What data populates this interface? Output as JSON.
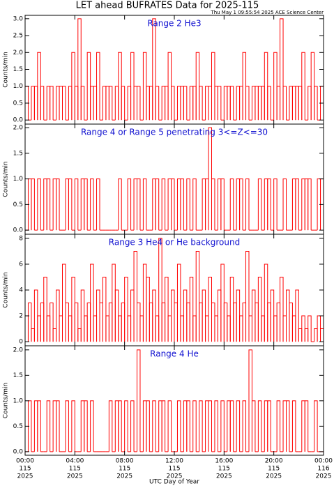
{
  "page": {
    "title": "LET ahead BUFRATES Data for 2025-115",
    "subtitle": "Thu May  1 09:55:54 2025 ACE Science Center"
  },
  "x_axis": {
    "label": "UTC Day of Year",
    "xlim": [
      0,
      24
    ],
    "xticks": [
      {
        "value": 0,
        "label": "00:00"
      },
      {
        "value": 4,
        "label": "04:00"
      },
      {
        "value": 8,
        "label": "08:00"
      },
      {
        "value": 12,
        "label": "12:00"
      },
      {
        "value": 16,
        "label": "16:00"
      },
      {
        "value": 20,
        "label": "20:00"
      },
      {
        "value": 24,
        "label": "00:00"
      }
    ],
    "xtick_days": [
      "115",
      "115",
      "115",
      "115",
      "115",
      "115",
      "116"
    ],
    "xtick_years": [
      "2025",
      "2025",
      "2025",
      "2025",
      "2025",
      "2025",
      "2025"
    ]
  },
  "chart_data": [
    {
      "type": "line",
      "title": "Range 2 He3",
      "ylabel": "Counts/min",
      "color": "#ff0000",
      "ylim": [
        -0.12,
        3.1
      ],
      "yticks": [
        {
          "value": 0,
          "label": "0.0"
        },
        {
          "value": 0.5,
          "label": "0.5"
        },
        {
          "value": 1,
          "label": "1.0"
        },
        {
          "value": 1.5,
          "label": "1.5"
        },
        {
          "value": 2,
          "label": "2.0"
        },
        {
          "value": 2.5,
          "label": "2.5"
        },
        {
          "value": 3,
          "label": "3.0"
        }
      ],
      "x": [
        0,
        0.25,
        0.5,
        0.75,
        1,
        1.25,
        1.5,
        1.75,
        2,
        2.25,
        2.5,
        2.75,
        3,
        3.25,
        3.5,
        3.75,
        4,
        4.25,
        4.5,
        4.75,
        5,
        5.25,
        5.5,
        5.75,
        6,
        6.25,
        6.5,
        6.75,
        7,
        7.25,
        7.5,
        7.75,
        8,
        8.25,
        8.5,
        8.75,
        9,
        9.25,
        9.5,
        9.75,
        10,
        10.25,
        10.5,
        10.75,
        11,
        11.25,
        11.5,
        11.75,
        12,
        12.25,
        12.5,
        12.75,
        13,
        13.25,
        13.5,
        13.75,
        14,
        14.25,
        14.5,
        14.75,
        15,
        15.25,
        15.5,
        15.75,
        16,
        16.25,
        16.5,
        16.75,
        17,
        17.25,
        17.5,
        17.75,
        18,
        18.25,
        18.5,
        18.75,
        19,
        19.25,
        19.5,
        19.75,
        20,
        20.25,
        20.5,
        20.75,
        21,
        21.25,
        21.5,
        21.75,
        22,
        22.25,
        22.5,
        22.75,
        23,
        23.25,
        23.5,
        23.75,
        24
      ],
      "values": [
        1,
        0,
        1,
        1,
        2,
        1,
        0,
        1,
        1,
        0,
        1,
        1,
        1,
        0,
        1,
        2,
        1,
        3,
        1,
        0,
        2,
        1,
        1,
        2,
        0,
        1,
        1,
        1,
        0,
        1,
        2,
        1,
        0,
        1,
        2,
        1,
        1,
        0,
        2,
        1,
        1,
        3,
        1,
        0,
        1,
        1,
        2,
        1,
        0,
        1,
        1,
        1,
        0,
        1,
        1,
        2,
        1,
        0,
        1,
        1,
        2,
        1,
        1,
        0,
        1,
        1,
        1,
        0,
        1,
        1,
        2,
        1,
        0,
        1,
        1,
        1,
        1,
        2,
        1,
        0,
        2,
        1,
        3,
        1,
        0,
        1,
        1,
        1,
        1,
        2,
        0,
        1,
        2,
        1,
        0,
        1,
        1
      ]
    },
    {
      "type": "line",
      "title": "Range 4 or Range 5 penetrating 3<=Z<=30",
      "ylabel": "Counts/min",
      "color": "#ff0000",
      "ylim": [
        -0.08,
        2.07
      ],
      "yticks": [
        {
          "value": 0,
          "label": "0.0"
        },
        {
          "value": 0.5,
          "label": "0.5"
        },
        {
          "value": 1,
          "label": "1.0"
        },
        {
          "value": 1.5,
          "label": "1.5"
        },
        {
          "value": 2,
          "label": "2.0"
        }
      ],
      "x": [
        0,
        0.25,
        0.5,
        0.75,
        1,
        1.25,
        1.5,
        1.75,
        2,
        2.25,
        2.5,
        2.75,
        3,
        3.25,
        3.5,
        3.75,
        4,
        4.25,
        4.5,
        4.75,
        5,
        5.25,
        5.5,
        5.75,
        6,
        6.25,
        6.5,
        6.75,
        7,
        7.25,
        7.5,
        7.75,
        8,
        8.25,
        8.5,
        8.75,
        9,
        9.25,
        9.5,
        9.75,
        10,
        10.25,
        10.5,
        10.75,
        11,
        11.25,
        11.5,
        11.75,
        12,
        12.25,
        12.5,
        12.75,
        13,
        13.25,
        13.5,
        13.75,
        14,
        14.25,
        14.5,
        14.75,
        15,
        15.25,
        15.5,
        15.75,
        16,
        16.25,
        16.5,
        16.75,
        17,
        17.25,
        17.5,
        17.75,
        18,
        18.25,
        18.5,
        18.75,
        19,
        19.25,
        19.5,
        19.75,
        20,
        20.25,
        20.5,
        20.75,
        21,
        21.25,
        21.5,
        21.75,
        22,
        22.25,
        22.5,
        22.75,
        23,
        23.25,
        23.5,
        23.75,
        24
      ],
      "values": [
        0,
        1,
        1,
        0,
        1,
        0,
        1,
        1,
        0,
        1,
        1,
        0,
        0,
        1,
        1,
        0,
        1,
        0,
        1,
        1,
        0,
        1,
        0,
        1,
        0,
        0,
        0,
        0,
        0,
        0,
        1,
        0,
        0,
        1,
        0,
        1,
        1,
        0,
        1,
        0,
        0,
        1,
        1,
        0,
        1,
        0,
        1,
        1,
        0,
        1,
        1,
        0,
        1,
        0,
        1,
        0,
        0,
        1,
        1,
        2,
        1,
        0,
        1,
        1,
        0,
        0,
        1,
        0,
        1,
        1,
        0,
        1,
        0,
        0,
        0,
        1,
        0,
        1,
        1,
        0,
        1,
        0,
        0,
        1,
        0,
        0,
        1,
        1,
        0,
        1,
        1,
        1,
        0,
        0,
        1,
        1,
        0
      ]
    },
    {
      "type": "line",
      "title": "Range 3 He4 or He background",
      "ylabel": "Counts/min",
      "color": "#ff0000",
      "ylim": [
        -0.32,
        8.32
      ],
      "yticks": [
        0,
        2,
        4,
        6,
        8
      ],
      "x": [
        0,
        0.25,
        0.5,
        0.75,
        1,
        1.25,
        1.5,
        1.75,
        2,
        2.25,
        2.5,
        2.75,
        3,
        3.25,
        3.5,
        3.75,
        4,
        4.25,
        4.5,
        4.75,
        5,
        5.25,
        5.5,
        5.75,
        6,
        6.25,
        6.5,
        6.75,
        7,
        7.25,
        7.5,
        7.75,
        8,
        8.25,
        8.5,
        8.75,
        9,
        9.25,
        9.5,
        9.75,
        10,
        10.25,
        10.5,
        10.75,
        11,
        11.25,
        11.5,
        11.75,
        12,
        12.25,
        12.5,
        12.75,
        13,
        13.25,
        13.5,
        13.75,
        14,
        14.25,
        14.5,
        14.75,
        15,
        15.25,
        15.5,
        15.75,
        16,
        16.25,
        16.5,
        16.75,
        17,
        17.25,
        17.5,
        17.75,
        18,
        18.25,
        18.5,
        18.75,
        19,
        19.25,
        19.5,
        19.75,
        20,
        20.25,
        20.5,
        20.75,
        21,
        21.25,
        21.5,
        21.75,
        22,
        22.25,
        22.5,
        22.75,
        23,
        23.25,
        23.5,
        23.75,
        24
      ],
      "values": [
        2,
        3,
        1,
        4,
        2,
        3,
        5,
        2,
        3,
        1,
        4,
        2,
        6,
        3,
        2,
        5,
        3,
        1,
        4,
        2,
        3,
        6,
        2,
        4,
        3,
        5,
        2,
        3,
        6,
        4,
        2,
        3,
        5,
        2,
        4,
        7,
        3,
        2,
        6,
        5,
        3,
        4,
        2,
        8,
        3,
        5,
        2,
        4,
        3,
        6,
        2,
        4,
        3,
        5,
        2,
        7,
        3,
        4,
        2,
        5,
        3,
        2,
        4,
        6,
        3,
        2,
        5,
        3,
        4,
        2,
        3,
        7,
        2,
        4,
        3,
        5,
        2,
        6,
        3,
        4,
        2,
        3,
        5,
        2,
        4,
        3,
        2,
        4,
        1,
        2,
        1,
        2,
        0,
        1,
        2,
        1,
        0
      ]
    },
    {
      "type": "line",
      "title": "Range 4 He",
      "ylabel": "Counts/min",
      "color": "#ff0000",
      "ylim": [
        -0.07,
        2.08
      ],
      "yticks": [
        {
          "value": 0,
          "label": "0.0"
        },
        {
          "value": 0.5,
          "label": "0.5"
        },
        {
          "value": 1,
          "label": "1.0"
        },
        {
          "value": 1.5,
          "label": "1.5"
        },
        {
          "value": 2,
          "label": "2.0"
        }
      ],
      "x": [
        0,
        0.25,
        0.5,
        0.75,
        1,
        1.25,
        1.5,
        1.75,
        2,
        2.25,
        2.5,
        2.75,
        3,
        3.25,
        3.5,
        3.75,
        4,
        4.25,
        4.5,
        4.75,
        5,
        5.25,
        5.5,
        5.75,
        6,
        6.25,
        6.5,
        6.75,
        7,
        7.25,
        7.5,
        7.75,
        8,
        8.25,
        8.5,
        8.75,
        9,
        9.25,
        9.5,
        9.75,
        10,
        10.25,
        10.5,
        10.75,
        11,
        11.25,
        11.5,
        11.75,
        12,
        12.25,
        12.5,
        12.75,
        13,
        13.25,
        13.5,
        13.75,
        14,
        14.25,
        14.5,
        14.75,
        15,
        15.25,
        15.5,
        15.75,
        16,
        16.25,
        16.5,
        16.75,
        17,
        17.25,
        17.5,
        17.75,
        18,
        18.25,
        18.5,
        18.75,
        19,
        19.25,
        19.5,
        19.75,
        20,
        20.25,
        20.5,
        20.75,
        21,
        21.25,
        21.5,
        21.75,
        22,
        22.25,
        22.5,
        22.75,
        23,
        23.25,
        23.5,
        23.75,
        24
      ],
      "values": [
        0,
        1,
        0,
        1,
        1,
        0,
        0,
        1,
        0,
        1,
        1,
        0,
        0,
        1,
        0,
        1,
        0,
        0,
        1,
        1,
        0,
        1,
        0,
        0,
        0,
        0,
        0,
        1,
        0,
        1,
        1,
        0,
        1,
        0,
        1,
        0,
        2,
        0,
        1,
        1,
        0,
        1,
        0,
        1,
        1,
        0,
        1,
        0,
        0,
        1,
        0,
        1,
        1,
        0,
        1,
        0,
        1,
        0,
        1,
        1,
        0,
        1,
        0,
        1,
        0,
        1,
        1,
        0,
        1,
        0,
        1,
        0,
        2,
        1,
        0,
        1,
        0,
        1,
        1,
        0,
        0,
        1,
        0,
        1,
        1,
        0,
        1,
        0,
        0,
        1,
        1,
        0,
        0,
        1,
        0,
        0,
        1
      ]
    }
  ]
}
